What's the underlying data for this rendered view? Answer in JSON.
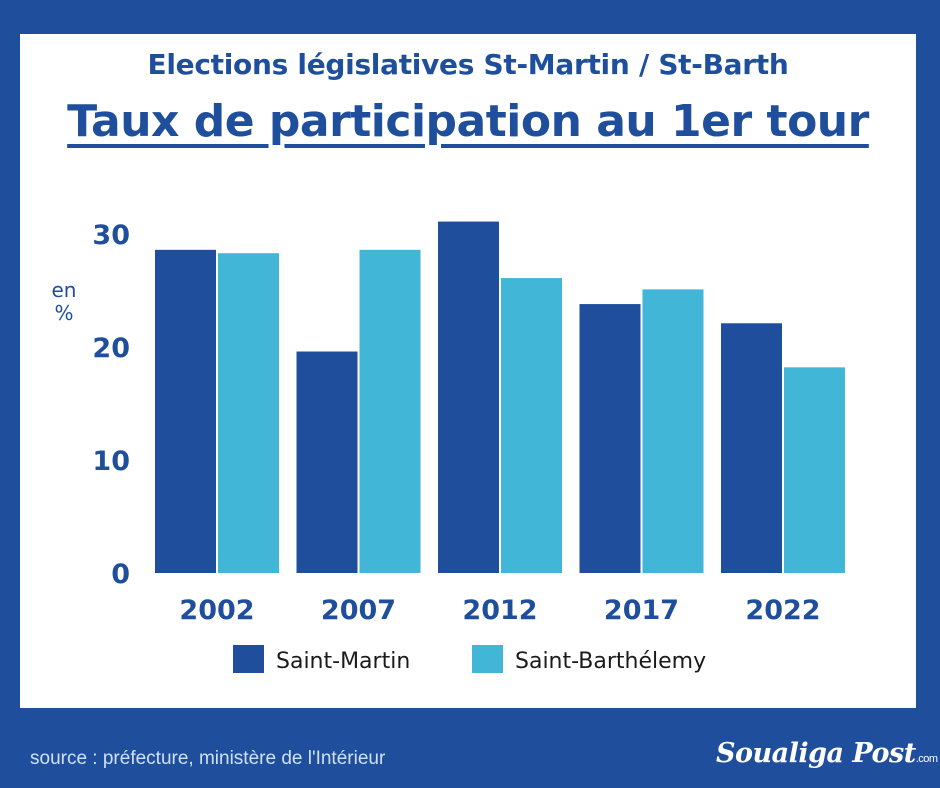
{
  "header": {
    "title": "Elections législatives St-Martin / St-Barth",
    "subtitle": "Taux de participation au 1er tour"
  },
  "chart_data": {
    "type": "bar",
    "categories": [
      "2002",
      "2007",
      "2012",
      "2017",
      "2022"
    ],
    "series": [
      {
        "name": "Saint-Martin",
        "color": "#1f4f9c",
        "values": [
          28.6,
          19.6,
          31.1,
          23.8,
          22.1
        ]
      },
      {
        "name": "Saint-Barthélemy",
        "color": "#41b6d6",
        "values": [
          28.3,
          28.6,
          26.1,
          25.1,
          18.2
        ]
      }
    ],
    "ylabel": "en %",
    "yticks": [
      0,
      10,
      20,
      30
    ],
    "ylim": [
      0,
      30
    ],
    "grid": false,
    "legend": "bottom"
  },
  "footer": {
    "source": "source : préfecture, ministère de l'Intérieur",
    "logo": "Soualiga Post",
    "logo_suffix": ".com"
  }
}
